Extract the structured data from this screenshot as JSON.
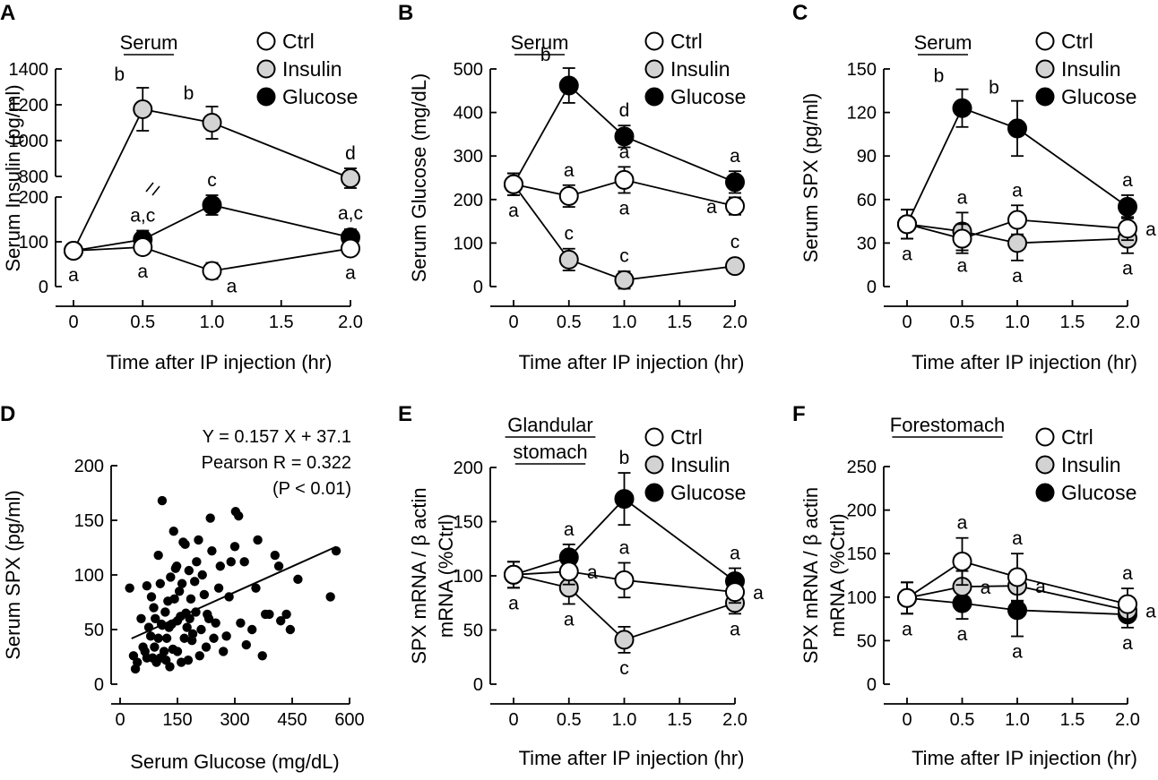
{
  "figure": {
    "legend": [
      {
        "label": "Ctrl",
        "fill": "#ffffff"
      },
      {
        "label": "Insulin",
        "fill": "#d3d3d3"
      },
      {
        "label": "Glucose",
        "fill": "#000000"
      }
    ],
    "time_tick_labels": [
      "0",
      "0.5",
      "1.0",
      "1.5",
      "2.0"
    ],
    "time_axis_title": "Time after IP injection (hr)"
  },
  "chart_data": [
    {
      "panel": "A",
      "type": "line",
      "subtitle": "Serum",
      "ylabel": "Serum Insulin (pg/ml)",
      "xlabel": "Time after IP injection (hr)",
      "broken_axis": true,
      "ylim_lower": [
        0,
        200
      ],
      "ylim_upper": [
        800,
        1400
      ],
      "yticks_lower": [
        "0",
        "100",
        "200"
      ],
      "yticks_upper": [
        "800",
        "1000",
        "1200",
        "1400"
      ],
      "x": [
        0,
        0.5,
        1.0,
        2.0
      ],
      "series": [
        {
          "name": "Ctrl",
          "values": [
            80,
            88,
            35,
            85
          ],
          "errors": [
            15,
            15,
            18,
            15
          ],
          "letters": [
            "a",
            "a",
            "a",
            "a"
          ],
          "letter_pos": [
            "below",
            "below",
            "below-right",
            "below"
          ]
        },
        {
          "name": "Insulin",
          "values": [
            80,
            1175,
            1100,
            790
          ],
          "errors": [
            15,
            120,
            90,
            55
          ],
          "letters": [
            "",
            "b",
            "b",
            "d"
          ],
          "letter_pos": [
            "",
            "above-left",
            "above-left",
            "above"
          ]
        },
        {
          "name": "Glucose",
          "values": [
            80,
            105,
            182,
            110
          ],
          "errors": [
            15,
            20,
            22,
            18
          ],
          "letters": [
            "",
            "a,c",
            "c",
            "a,c"
          ],
          "letter_pos": [
            "",
            "above",
            "above",
            "above"
          ]
        }
      ]
    },
    {
      "panel": "B",
      "type": "line",
      "subtitle": "Serum",
      "ylabel": "Serum Glucose (mg/dL)",
      "xlabel": "Time after IP injection (hr)",
      "ylim": [
        0,
        500
      ],
      "yticks": [
        "0",
        "100",
        "200",
        "300",
        "400",
        "500"
      ],
      "x": [
        0,
        0.5,
        1.0,
        2.0
      ],
      "series": [
        {
          "name": "Ctrl",
          "values": [
            235,
            208,
            245,
            185
          ],
          "errors": [
            25,
            25,
            30,
            20
          ],
          "letters": [
            "a",
            "a",
            "a",
            "a"
          ],
          "letter_pos": [
            "below",
            "above",
            "both",
            "left"
          ]
        },
        {
          "name": "Insulin",
          "values": [
            235,
            62,
            15,
            47
          ],
          "errors": [
            25,
            25,
            20,
            15
          ],
          "letters": [
            "",
            "c",
            "c",
            "c"
          ],
          "letter_pos": [
            "",
            "above",
            "above",
            "above"
          ]
        },
        {
          "name": "Glucose",
          "values": [
            235,
            462,
            345,
            240
          ],
          "errors": [
            25,
            40,
            25,
            25
          ],
          "letters": [
            "",
            "b",
            "d",
            "a"
          ],
          "letter_pos": [
            "",
            "above-left",
            "above",
            "above"
          ]
        }
      ]
    },
    {
      "panel": "C",
      "type": "line",
      "subtitle": "Serum",
      "ylabel": "Serum SPX (pg/ml)",
      "xlabel": "Time after IP injection (hr)",
      "ylim": [
        0,
        150
      ],
      "yticks": [
        "0",
        "30",
        "60",
        "90",
        "120",
        "150"
      ],
      "x": [
        0,
        0.5,
        1.0,
        2.0
      ],
      "series": [
        {
          "name": "Ctrl",
          "values": [
            43,
            33,
            46,
            40
          ],
          "errors": [
            10,
            10,
            10,
            8
          ],
          "letters": [
            "a",
            "",
            "a",
            "a"
          ],
          "letter_pos": [
            "below",
            "",
            "above",
            "right"
          ]
        },
        {
          "name": "Insulin",
          "values": [
            43,
            38,
            30,
            33
          ],
          "errors": [
            10,
            13,
            12,
            10
          ],
          "letters": [
            "",
            "a",
            "a",
            "a"
          ],
          "letter_pos": [
            "",
            "both",
            "below",
            "below"
          ]
        },
        {
          "name": "Glucose",
          "values": [
            43,
            123,
            109,
            55
          ],
          "errors": [
            10,
            13,
            19,
            8
          ],
          "letters": [
            "",
            "b",
            "b",
            "a"
          ],
          "letter_pos": [
            "",
            "above-left",
            "above-left",
            "above"
          ]
        }
      ]
    },
    {
      "panel": "D",
      "type": "scatter",
      "ylabel": "Serum SPX (pg/ml)",
      "xlabel": "Serum Glucose (mg/dL)",
      "xlim": [
        0,
        600
      ],
      "ylim": [
        0,
        200
      ],
      "xticks": [
        "0",
        "150",
        "300",
        "450",
        "600"
      ],
      "yticks": [
        "0",
        "50",
        "100",
        "150",
        "200"
      ],
      "annotation": [
        "Y = 0.157 X + 37.1",
        "Pearson R = 0.322",
        "(P < 0.01)"
      ],
      "regression": {
        "slope": 0.157,
        "intercept": 37.1,
        "x_range": [
          30,
          565
        ]
      },
      "points": [
        [
          25,
          88
        ],
        [
          35,
          26
        ],
        [
          40,
          14
        ],
        [
          45,
          20
        ],
        [
          55,
          60
        ],
        [
          60,
          34
        ],
        [
          65,
          30
        ],
        [
          70,
          90
        ],
        [
          70,
          24
        ],
        [
          75,
          52
        ],
        [
          80,
          44
        ],
        [
          82,
          80
        ],
        [
          85,
          24
        ],
        [
          88,
          70
        ],
        [
          90,
          34
        ],
        [
          92,
          60
        ],
        [
          95,
          20
        ],
        [
          100,
          42
        ],
        [
          100,
          118
        ],
        [
          105,
          92
        ],
        [
          105,
          24
        ],
        [
          108,
          55
        ],
        [
          110,
          168
        ],
        [
          110,
          54
        ],
        [
          115,
          30
        ],
        [
          118,
          66
        ],
        [
          120,
          22
        ],
        [
          122,
          42
        ],
        [
          125,
          76
        ],
        [
          128,
          52
        ],
        [
          130,
          16
        ],
        [
          132,
          98
        ],
        [
          135,
          55
        ],
        [
          138,
          32
        ],
        [
          140,
          140
        ],
        [
          142,
          78
        ],
        [
          145,
          106
        ],
        [
          148,
          108
        ],
        [
          150,
          30
        ],
        [
          150,
          58
        ],
        [
          155,
          85
        ],
        [
          158,
          62
        ],
        [
          160,
          20
        ],
        [
          162,
          92
        ],
        [
          165,
          130
        ],
        [
          168,
          42
        ],
        [
          170,
          128
        ],
        [
          172,
          65
        ],
        [
          175,
          52
        ],
        [
          178,
          22
        ],
        [
          180,
          104
        ],
        [
          182,
          60
        ],
        [
          185,
          78
        ],
        [
          188,
          40
        ],
        [
          190,
          46
        ],
        [
          195,
          94
        ],
        [
          198,
          66
        ],
        [
          200,
          112
        ],
        [
          205,
          132
        ],
        [
          208,
          26
        ],
        [
          212,
          50
        ],
        [
          215,
          100
        ],
        [
          220,
          82
        ],
        [
          225,
          34
        ],
        [
          228,
          64
        ],
        [
          232,
          60
        ],
        [
          236,
          152
        ],
        [
          240,
          122
        ],
        [
          245,
          42
        ],
        [
          250,
          56
        ],
        [
          258,
          88
        ],
        [
          262,
          108
        ],
        [
          270,
          30
        ],
        [
          278,
          44
        ],
        [
          285,
          80
        ],
        [
          290,
          112
        ],
        [
          300,
          126
        ],
        [
          302,
          158
        ],
        [
          310,
          154
        ],
        [
          315,
          56
        ],
        [
          325,
          112
        ],
        [
          330,
          36
        ],
        [
          345,
          50
        ],
        [
          355,
          88
        ],
        [
          360,
          132
        ],
        [
          372,
          26
        ],
        [
          380,
          64
        ],
        [
          390,
          64
        ],
        [
          405,
          118
        ],
        [
          415,
          108
        ],
        [
          420,
          58
        ],
        [
          435,
          64
        ],
        [
          445,
          50
        ],
        [
          465,
          96
        ],
        [
          550,
          80
        ],
        [
          565,
          122
        ]
      ]
    },
    {
      "panel": "E",
      "type": "line",
      "subtitle": [
        "Glandular",
        "stomach"
      ],
      "ylabel": [
        "SPX mRNA / β actin",
        "mRNA (%Ctrl)"
      ],
      "xlabel": "Time after IP injection (hr)",
      "ylim": [
        0,
        200
      ],
      "yticks": [
        "0",
        "50",
        "100",
        "150",
        "200"
      ],
      "x": [
        0,
        0.5,
        1.0,
        2.0
      ],
      "series": [
        {
          "name": "Ctrl",
          "values": [
            101,
            104,
            96,
            85
          ],
          "errors": [
            12,
            12,
            16,
            10
          ],
          "letters": [
            "a",
            "a",
            "a",
            "a"
          ],
          "letter_pos": [
            "below",
            "right",
            "above",
            "right"
          ]
        },
        {
          "name": "Insulin",
          "values": [
            101,
            89,
            41,
            75
          ],
          "errors": [
            12,
            15,
            12,
            10
          ],
          "letters": [
            "",
            "a",
            "c",
            "a"
          ],
          "letter_pos": [
            "",
            "below",
            "below",
            "below"
          ]
        },
        {
          "name": "Glucose",
          "values": [
            101,
            117,
            171,
            95
          ],
          "errors": [
            12,
            12,
            24,
            12
          ],
          "letters": [
            "",
            "a",
            "b",
            "a"
          ],
          "letter_pos": [
            "",
            "above",
            "above",
            "above"
          ]
        }
      ]
    },
    {
      "panel": "F",
      "type": "line",
      "subtitle": "Forestomach",
      "ylabel": [
        "SPX mRNA / β actin",
        "mRNA (%Ctrl)"
      ],
      "xlabel": "Time after IP injection (hr)",
      "ylim": [
        0,
        250
      ],
      "yticks": [
        "0",
        "50",
        "100",
        "150",
        "200",
        "250"
      ],
      "x": [
        0,
        0.5,
        1.0,
        2.0
      ],
      "series": [
        {
          "name": "Ctrl",
          "values": [
            99,
            141,
            123,
            92
          ],
          "errors": [
            18,
            27,
            27,
            18
          ],
          "letters": [
            "a",
            "a",
            "a",
            "a"
          ],
          "letter_pos": [
            "below",
            "above",
            "above",
            "above"
          ]
        },
        {
          "name": "Insulin",
          "values": [
            99,
            112,
            113,
            85
          ],
          "errors": [
            18,
            18,
            18,
            12
          ],
          "letters": [
            "",
            "a",
            "a",
            "a"
          ],
          "letter_pos": [
            "",
            "right",
            "right",
            "right"
          ]
        },
        {
          "name": "Glucose",
          "values": [
            99,
            93,
            85,
            80
          ],
          "errors": [
            18,
            18,
            30,
            15
          ],
          "letters": [
            "",
            "a",
            "a",
            "a"
          ],
          "letter_pos": [
            "",
            "below",
            "below",
            "below"
          ]
        }
      ]
    }
  ]
}
